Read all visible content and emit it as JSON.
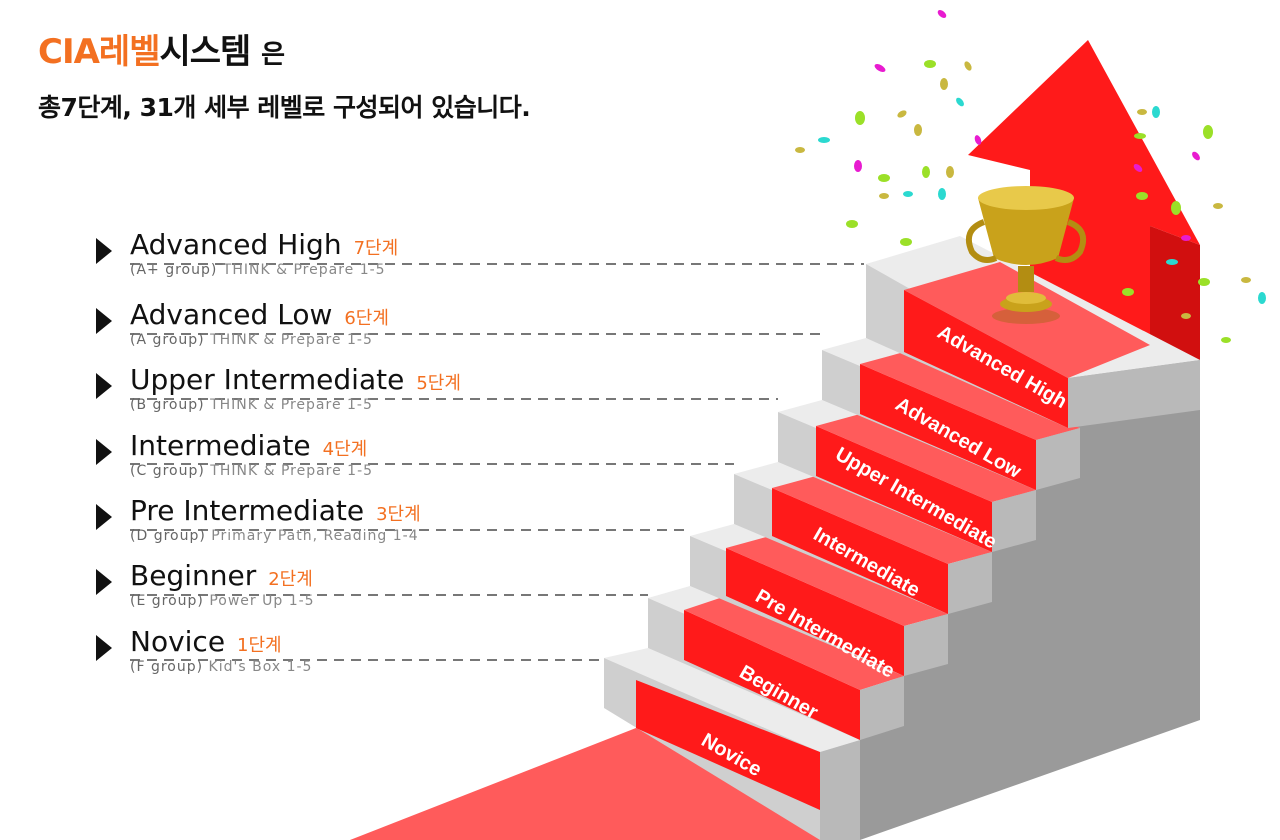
{
  "header": {
    "title_accent": "CIA레벨",
    "title_main": "시스템",
    "title_suffix": "은",
    "subtitle": "총7단계, 31개 세부 레벨로 구성되어 있습니다."
  },
  "levels": [
    {
      "name": "Advanced High",
      "stage": "7단계",
      "group": "(A+ group)",
      "course": "THINK & Prepare 1-5"
    },
    {
      "name": "Advanced Low",
      "stage": "6단계",
      "group": "(A group)",
      "course": "THINK & Prepare 1-5"
    },
    {
      "name": "Upper Intermediate",
      "stage": "5단계",
      "group": "(B group)",
      "course": "THINK & Prepare 1-5"
    },
    {
      "name": "Intermediate",
      "stage": "4단계",
      "group": "(C group)",
      "course": "THINK & Prepare 1-5"
    },
    {
      "name": "Pre Intermediate",
      "stage": "3단계",
      "group": "(D group)",
      "course": "Primary Path, Reading  1-4"
    },
    {
      "name": "Beginner",
      "stage": "2단계",
      "group": "(E group)",
      "course": "Power Up 1-5"
    },
    {
      "name": "Novice",
      "stage": "1단계",
      "group": "(F group)",
      "course": "Kid's Box 1-5"
    }
  ],
  "colors": {
    "accent": "#f37021",
    "carpet": "#fe1a1a",
    "carpet_light": "#ff5b5b",
    "step_top": "#eeeeee",
    "step_side": "#cccccc",
    "wall": "#9e9e9e",
    "trophy": "#c9a21b"
  },
  "icons": {
    "bullet": "triangle-right-icon",
    "trophy": "trophy-icon",
    "arrow": "up-arrow-icon"
  }
}
